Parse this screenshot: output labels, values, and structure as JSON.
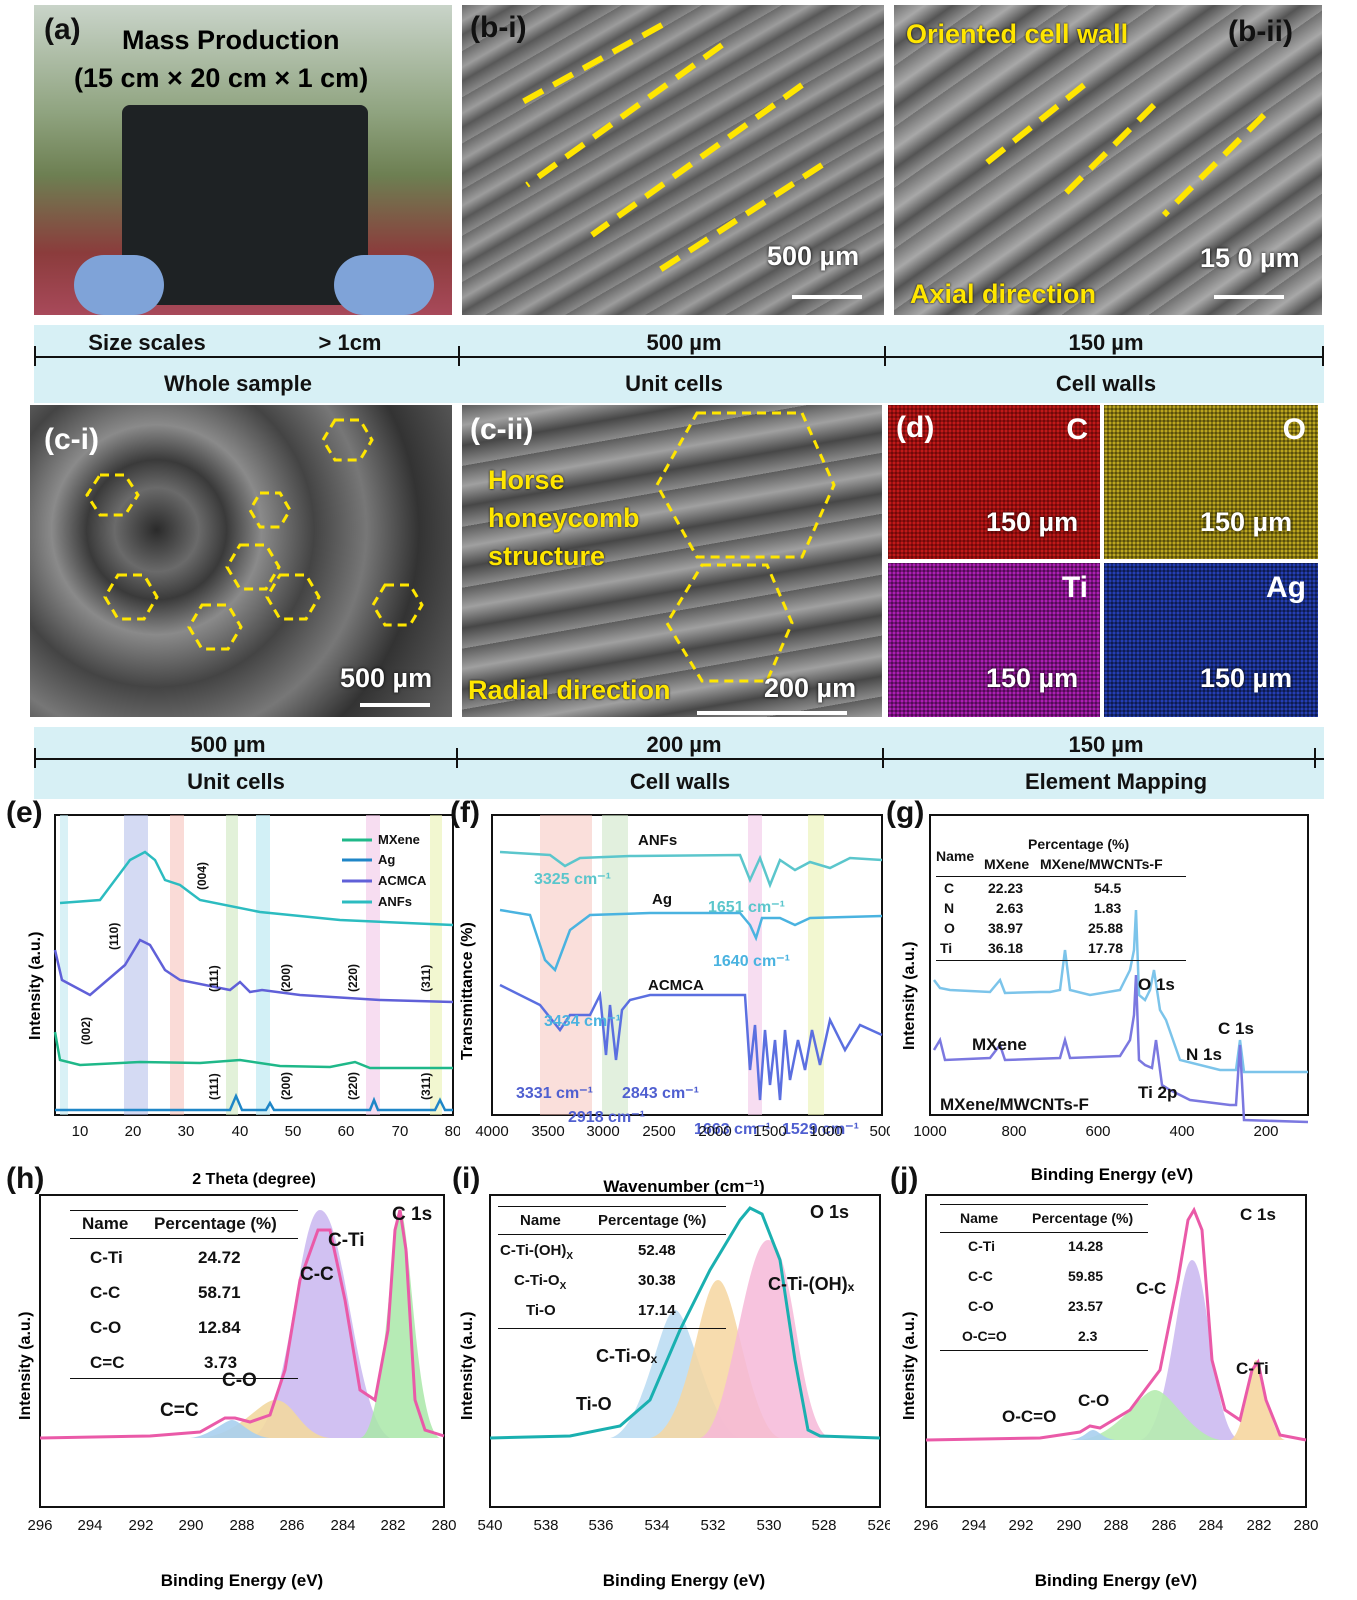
{
  "panels": {
    "a": {
      "label": "(a)",
      "title1": "Mass Production",
      "title2": "(15 cm × 20 cm × 1 cm)"
    },
    "bi": {
      "label": "(b-i)",
      "scale": "500 µm"
    },
    "bii": {
      "label": "(b-ii)",
      "top": "Oriented cell wall",
      "bottom": "Axial direction",
      "scale": "15 0 µm"
    },
    "ci": {
      "label": "(c-i)",
      "scale": "500 µm"
    },
    "cii": {
      "label": "(c-ii)",
      "text1": "Horse",
      "text2": "honeycomb",
      "text3": "structure",
      "bottom": "Radial direction",
      "scale": "200 µm"
    },
    "d": {
      "label": "(d)",
      "elements": [
        {
          "name": "C",
          "scale": "150 µm",
          "color": "#c41a1a"
        },
        {
          "name": "O",
          "scale": "150 µm",
          "color": "#b3a01c"
        },
        {
          "name": "Ti",
          "scale": "150 µm",
          "color": "#a41aa8"
        },
        {
          "name": "Ag",
          "scale": "150 µm",
          "color": "#1c2f9e"
        }
      ]
    }
  },
  "band1": {
    "size_scales": "Size scales",
    "scale_a": "> 1cm",
    "scale_b": "500 µm",
    "scale_c": "150 µm",
    "name_a": "Whole sample",
    "name_b": "Unit cells",
    "name_c": "Cell walls"
  },
  "band2": {
    "scale_a": "500 µm",
    "scale_b": "200 µm",
    "scale_c": "150 µm",
    "name_a": "Unit cells",
    "name_b": "Cell walls",
    "name_c": "Element Mapping"
  },
  "chart_data": [
    {
      "panel": "(e)",
      "type": "line",
      "xlabel": "2 Theta (degree)",
      "ylabel": "Intensity (a.u.)",
      "xlim": [
        5,
        80
      ],
      "xticks": [
        "10",
        "20",
        "30",
        "40",
        "50",
        "60",
        "70",
        "80"
      ],
      "series": [
        {
          "name": "MXene",
          "color": "#1fb889"
        },
        {
          "name": "Ag",
          "color": "#1f86c7"
        },
        {
          "name": "ACMCA",
          "color": "#6060d8"
        },
        {
          "name": "ANFs",
          "color": "#2cbcc0"
        }
      ],
      "annotations": [
        "(004)",
        "(110)",
        "(111)",
        "(200)",
        "(220)",
        "(311)",
        "(002)",
        "(111)",
        "(200)",
        "(220)",
        "(311)"
      ]
    },
    {
      "panel": "(f)",
      "type": "line",
      "xlabel": "Wavenumber (cm-1)",
      "ylabel": "Transmittance (%)",
      "xlim": [
        4000,
        500
      ],
      "xticks": [
        "4000",
        "3500",
        "3000",
        "2500",
        "2000",
        "1500",
        "1000",
        "500"
      ],
      "series": [
        {
          "name": "ANFs",
          "color": "#5bc6cc"
        },
        {
          "name": "Ag",
          "color": "#4ab3e0"
        },
        {
          "name": "ACMCA",
          "color": "#5b6fe0"
        }
      ],
      "annotations": [
        "3325 cm-1",
        "1651 cm-1",
        "1640 cm-1",
        "3434 cm-1",
        "3331 cm-1",
        "2843 cm-1",
        "2918 cm-1",
        "1663 cm-1",
        "1529 cm-1"
      ]
    },
    {
      "panel": "(g)",
      "type": "line",
      "xlabel": "Binding Energy (eV)",
      "ylabel": "Intensity (a.u.)",
      "xlim": [
        1000,
        100
      ],
      "xticks": [
        "1000",
        "800",
        "600",
        "400",
        "200"
      ],
      "series": [
        {
          "name": "MXene",
          "color": "#7cc4ea"
        },
        {
          "name": "MXene/MWCNTs-F",
          "color": "#7b78e0"
        }
      ],
      "annotations": [
        "O 1s",
        "C 1s",
        "N 1s",
        "Ti 2p"
      ],
      "table": {
        "header": "Percentage (%)",
        "col0": "Name",
        "col1": "MXene",
        "col2": "MXene/MWCNTs-F",
        "rows": [
          [
            "C",
            "22.23",
            "54.5"
          ],
          [
            "N",
            "2.63",
            "1.83"
          ],
          [
            "O",
            "38.97",
            "25.88"
          ],
          [
            "Ti",
            "36.18",
            "17.78"
          ]
        ]
      }
    },
    {
      "panel": "(h)",
      "type": "area",
      "xlabel": "Binding Energy (eV)",
      "ylabel": "Intensity (a.u.)",
      "xlim": [
        296,
        280
      ],
      "title": "C 1s",
      "xticks": [
        "296",
        "294",
        "292",
        "290",
        "288",
        "286",
        "284",
        "282",
        "280"
      ],
      "peaks": [
        {
          "name": "C-Ti",
          "center": 281.8
        },
        {
          "name": "C-C",
          "center": 284.8
        },
        {
          "name": "C-O",
          "center": 287.0
        },
        {
          "name": "C=C",
          "center": 288.6
        }
      ],
      "table": {
        "col0": "Name",
        "col1": "Percentage (%)",
        "rows": [
          [
            "C-Ti",
            "24.72"
          ],
          [
            "C-C",
            "58.71"
          ],
          [
            "C-O",
            "12.84"
          ],
          [
            "C=C",
            "3.73"
          ]
        ]
      }
    },
    {
      "panel": "(i)",
      "type": "area",
      "xlabel": "Binding Energy (eV)",
      "ylabel": "Intensity (a.u.)",
      "xlim": [
        540,
        526
      ],
      "title": "O 1s",
      "xticks": [
        "540",
        "538",
        "536",
        "534",
        "532",
        "530",
        "528",
        "526"
      ],
      "peaks": [
        {
          "name": "C-Ti-(OH)x",
          "center": 530.0
        },
        {
          "name": "C-Ti-Ox",
          "center": 531.5
        },
        {
          "name": "Ti-O",
          "center": 533.2
        }
      ],
      "table": {
        "col0": "Name",
        "col1": "Percentage (%)",
        "rows": [
          [
            "C-Ti-(OH)x",
            "52.48"
          ],
          [
            "C-Ti-Ox",
            "30.38"
          ],
          [
            "Ti-O",
            "17.14"
          ]
        ]
      }
    },
    {
      "panel": "(j)",
      "type": "area",
      "xlabel": "Binding Energy (eV)",
      "ylabel": "Intensity (a.u.)",
      "xlim": [
        296,
        280
      ],
      "title": "C 1s",
      "xticks": [
        "296",
        "294",
        "292",
        "290",
        "288",
        "286",
        "284",
        "282",
        "280"
      ],
      "peaks": [
        {
          "name": "C-Ti",
          "center": 282.2
        },
        {
          "name": "C-C",
          "center": 284.8
        },
        {
          "name": "C-O",
          "center": 285.6
        },
        {
          "name": "O-C=O",
          "center": 289.2
        }
      ],
      "table": {
        "col0": "Name",
        "col1": "Percentage (%)",
        "rows": [
          [
            "C-Ti",
            "14.28"
          ],
          [
            "C-C",
            "59.85"
          ],
          [
            "C-O",
            "23.57"
          ],
          [
            "O-C=O",
            "2.3"
          ]
        ]
      }
    }
  ]
}
